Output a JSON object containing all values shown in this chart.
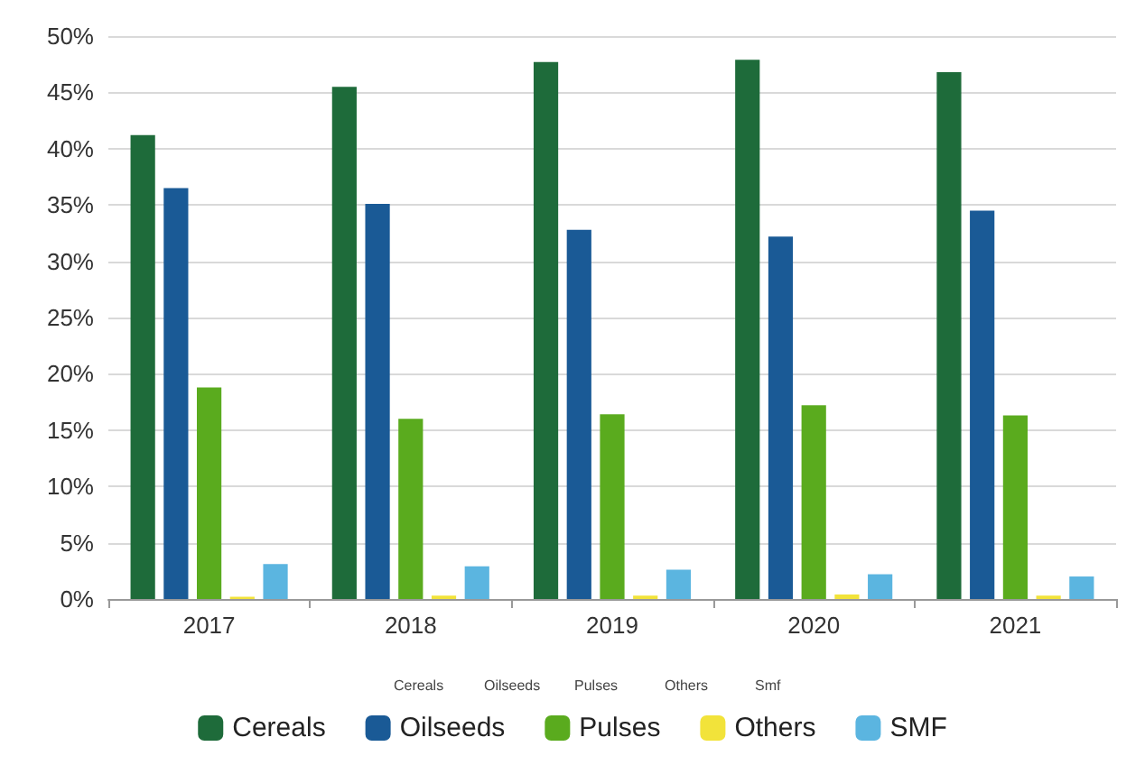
{
  "chart_data": {
    "type": "bar",
    "categories": [
      "2017",
      "2018",
      "2019",
      "2020",
      "2021"
    ],
    "series": [
      {
        "name": "Cereals",
        "color": "#1e6b3a",
        "values": [
          41.2,
          45.5,
          47.7,
          47.9,
          46.8
        ]
      },
      {
        "name": "Oilseeds",
        "color": "#1a5a96",
        "values": [
          36.5,
          35.1,
          32.8,
          32.2,
          34.5
        ]
      },
      {
        "name": "Pulses",
        "color": "#5aab1e",
        "values": [
          18.8,
          16.0,
          16.4,
          17.2,
          16.3
        ]
      },
      {
        "name": "Others",
        "color": "#f2e33a",
        "values": [
          0.2,
          0.3,
          0.3,
          0.4,
          0.3
        ]
      },
      {
        "name": "SMF",
        "color": "#5bb5e0",
        "values": [
          3.1,
          2.9,
          2.6,
          2.2,
          2.0
        ]
      }
    ],
    "ylim": [
      0,
      50
    ],
    "yticks": [
      {
        "value": 0,
        "label": "0%"
      },
      {
        "value": 5,
        "label": "5%"
      },
      {
        "value": 10,
        "label": "10%"
      },
      {
        "value": 15,
        "label": "15%"
      },
      {
        "value": 20,
        "label": "20%"
      },
      {
        "value": 25,
        "label": "25%"
      },
      {
        "value": 30,
        "label": "30%"
      },
      {
        "value": 35,
        "label": "35%"
      },
      {
        "value": 40,
        "label": "40%"
      },
      {
        "value": 45,
        "label": "45%"
      },
      {
        "value": 50,
        "label": "50%"
      }
    ],
    "grid": "y",
    "legend": "bottom",
    "annotations": [
      "Cereals",
      "Oilseeds",
      "Pulses",
      "Others",
      "Smf"
    ]
  }
}
